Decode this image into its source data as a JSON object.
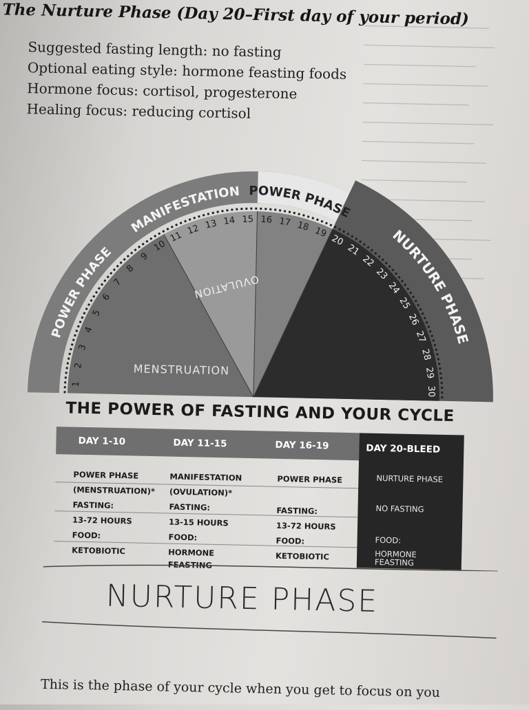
{
  "heading": "The Nurture Phase (Day 20–First day of your period)",
  "facts": [
    "Suggested fasting length: no fasting",
    "Optional eating style: hormone feasting foods",
    "Hormone focus: cortisol, progesterone",
    "Healing focus: reducing cortisol"
  ],
  "diagram": {
    "phase_labels": {
      "power_left": "POWER PHASE",
      "manifestation": "MANIFESTATION",
      "power_top": "POWER PHASE",
      "nurture": "NURTURE PHASE"
    },
    "wedge_labels": {
      "menstruation": "MENSTRUATION",
      "ovulation": "OVULATION"
    },
    "days": [
      "1",
      "2",
      "3",
      "4",
      "5",
      "6",
      "7",
      "8",
      "9",
      "10",
      "11",
      "12",
      "13",
      "14",
      "15",
      "16",
      "17",
      "18",
      "19",
      "20",
      "21",
      "22",
      "23",
      "24",
      "25",
      "26",
      "27",
      "28",
      "29",
      "30"
    ],
    "colors": {
      "outer_ring": "#7c7c7c",
      "nurture_ring": "#5a5a5a",
      "power_light": "#e7e7e7",
      "menstruation": "#6e6e6e",
      "ovulation": "#9a9a9a",
      "power_wedge": "#828282",
      "nurture_wedge": "#2c2c2c"
    }
  },
  "table": {
    "title": "THE POWER OF FASTING AND YOUR CYCLE",
    "columns": [
      {
        "header": "DAY 1-10",
        "rows": [
          "POWER PHASE",
          "(MENSTRUATION)*",
          "FASTING:",
          "13-72 HOURS",
          "FOOD:",
          "KETOBIOTIC"
        ]
      },
      {
        "header": "DAY 11-15",
        "rows": [
          "MANIFESTATION",
          "(OVULATION)*",
          "FASTING:",
          "13-15 HOURS",
          "FOOD:",
          "HORMONE",
          "FEASTING"
        ]
      },
      {
        "header": "DAY 16-19",
        "rows": [
          "POWER PHASE",
          "FASTING:",
          "13-72 HOURS",
          "FOOD:",
          "KETOBIOTIC"
        ]
      },
      {
        "header": "DAY 20-BLEED",
        "rows": [
          "NURTURE PHASE",
          "NO FASTING",
          "FOOD:",
          "HORMONE",
          "FEASTING"
        ]
      }
    ]
  },
  "section_title": "NURTURE PHASE",
  "body_text": "This is the phase of your cycle when you get to focus on you"
}
